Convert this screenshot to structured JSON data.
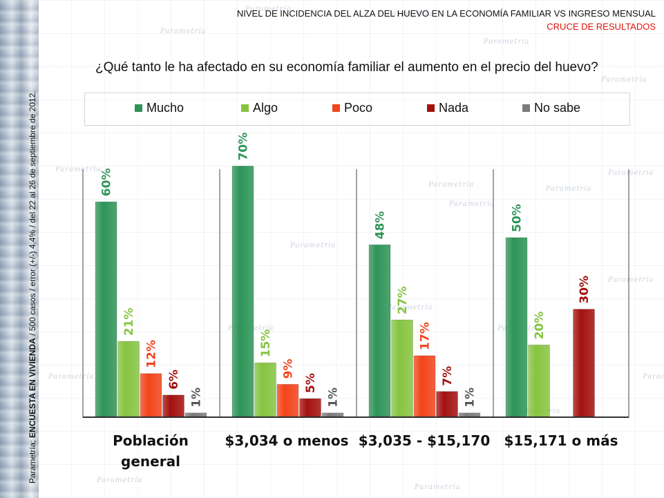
{
  "header": {
    "title": "NIVEL DE INCIDENCIA DEL ALZA DEL HUEVO EN LA ECONOMÍA FAMILIAR VS INGRESO MENSUAL",
    "subtitle": "CRUCE DE RESULTADOS"
  },
  "side_note": {
    "prefix": "Parametría; ",
    "bold": "ENCUESTA EN VIVIENDA",
    "suffix": " / 500 casos / error (+/-) 4.4% / del 22 al 26 de septiembre de 2012."
  },
  "watermark_text": "Parametría",
  "colors": {
    "Mucho": "#2e9457",
    "Algo": "#86c440",
    "Poco": "#f2441a",
    "Nada": "#a3110f",
    "No sabe": "#7a7a7a"
  },
  "chart_data": {
    "type": "bar",
    "title": "¿Qué tanto le ha afectado en su economía familiar el aumento en el precio del huevo?",
    "categories": [
      "Población general",
      "$3,034 o menos",
      "$3,035 - $15,170",
      "$15,171 o más"
    ],
    "category_labels": [
      [
        "Población",
        "general"
      ],
      [
        "$3,034 o menos"
      ],
      [
        "$3,035 - $15,170"
      ],
      [
        "$15,171 o más"
      ]
    ],
    "series": [
      {
        "name": "Mucho",
        "values": [
          60,
          70,
          48,
          50
        ],
        "labels": [
          "60%",
          "70%",
          "48%",
          "50%"
        ]
      },
      {
        "name": "Algo",
        "values": [
          21,
          15,
          27,
          20
        ],
        "labels": [
          "21%",
          "15%",
          "27%",
          "20%"
        ]
      },
      {
        "name": "Poco",
        "values": [
          12,
          9,
          17,
          null
        ],
        "labels": [
          "12%",
          "9%",
          "17%",
          null
        ]
      },
      {
        "name": "Nada",
        "values": [
          6,
          5,
          7,
          30
        ],
        "labels": [
          "6%",
          "5%",
          "7%",
          "30%"
        ]
      },
      {
        "name": "No sabe",
        "values": [
          1,
          1,
          1,
          null
        ],
        "labels": [
          "1%",
          "1%",
          "1%",
          null
        ]
      }
    ],
    "ylim": [
      0,
      72
    ],
    "legend_position": "top",
    "unit": "%"
  }
}
